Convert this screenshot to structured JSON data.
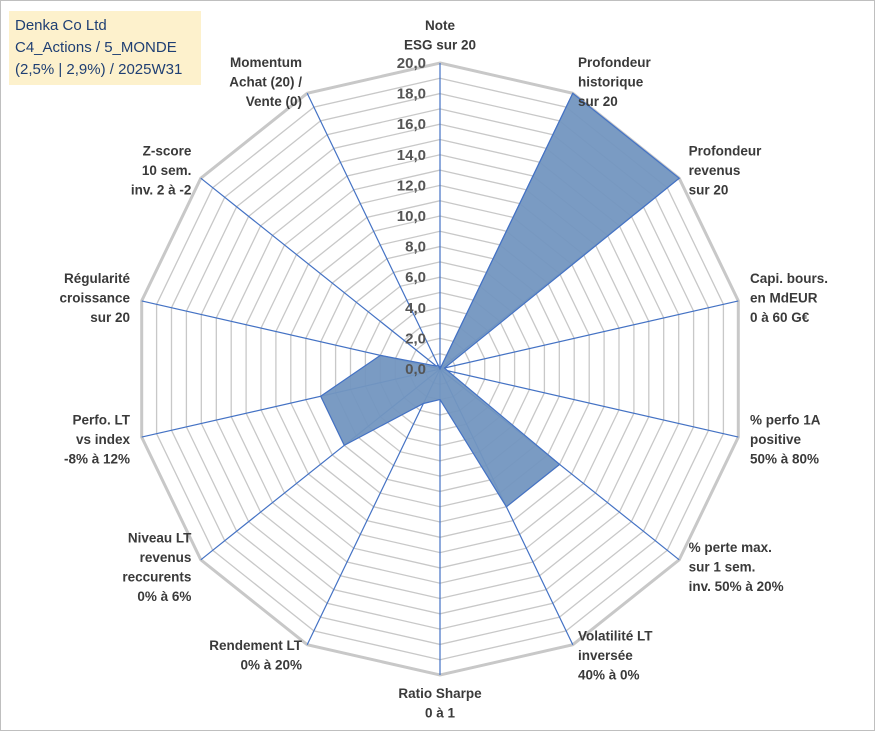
{
  "title_box": {
    "lines": [
      "Denka Co Ltd",
      "C4_Actions / 5_MONDE",
      "(2,5% | 2,9%) / 2025W31"
    ]
  },
  "chart_data": {
    "type": "radar",
    "title": "",
    "rmin": 0,
    "rmax": 20,
    "ticks": [
      "0,0",
      "2,0",
      "4,0",
      "6,0",
      "8,0",
      "10,0",
      "12,0",
      "14,0",
      "16,0",
      "18,0",
      "20,0"
    ],
    "grid_step": 1,
    "grid": true,
    "legend": "none",
    "colors": {
      "fill": "#7396c0",
      "stroke": "#4472c4",
      "grid": "#c8c8c8",
      "axis": "#4472c4"
    },
    "axes": [
      {
        "label": [
          "Note",
          "ESG sur 20"
        ],
        "value": 0
      },
      {
        "label": [
          "Profondeur",
          "historique",
          "sur 20"
        ],
        "value": 20
      },
      {
        "label": [
          "Profondeur",
          "revenus",
          "sur 20"
        ],
        "value": 20
      },
      {
        "label": [
          "Capi. bours.",
          "en MdEUR",
          "0 à 60 G€"
        ],
        "value": 0.3
      },
      {
        "label": [
          "% perfo 1A",
          "positive",
          "50% à 80%"
        ],
        "value": 0.5
      },
      {
        "label": [
          "% perte max.",
          "sur 1 sem.",
          "inv. 50% à 20%"
        ],
        "value": 10
      },
      {
        "label": [
          "Volatilité LT",
          "inversée",
          "40% à 0%"
        ],
        "value": 10
      },
      {
        "label": [
          "Ratio Sharpe",
          "0 à 1"
        ],
        "value": 2
      },
      {
        "label": [
          "Rendement LT",
          "0% à 20%"
        ],
        "value": 2.5
      },
      {
        "label": [
          "Niveau LT",
          "revenus",
          "reccurents",
          "0% à 6%"
        ],
        "value": 8
      },
      {
        "label": [
          "Perfo. LT",
          "vs index",
          "-8% à 12%"
        ],
        "value": 8
      },
      {
        "label": [
          "Régularité",
          "croissance",
          "sur 20"
        ],
        "value": 4
      },
      {
        "label": [
          "Z-score",
          "10 sem.",
          "inv. 2 à -2"
        ],
        "value": 0.3
      },
      {
        "label": [
          "Momentum",
          "Achat (20) /",
          "Vente (0)"
        ],
        "value": 0.3
      }
    ]
  }
}
